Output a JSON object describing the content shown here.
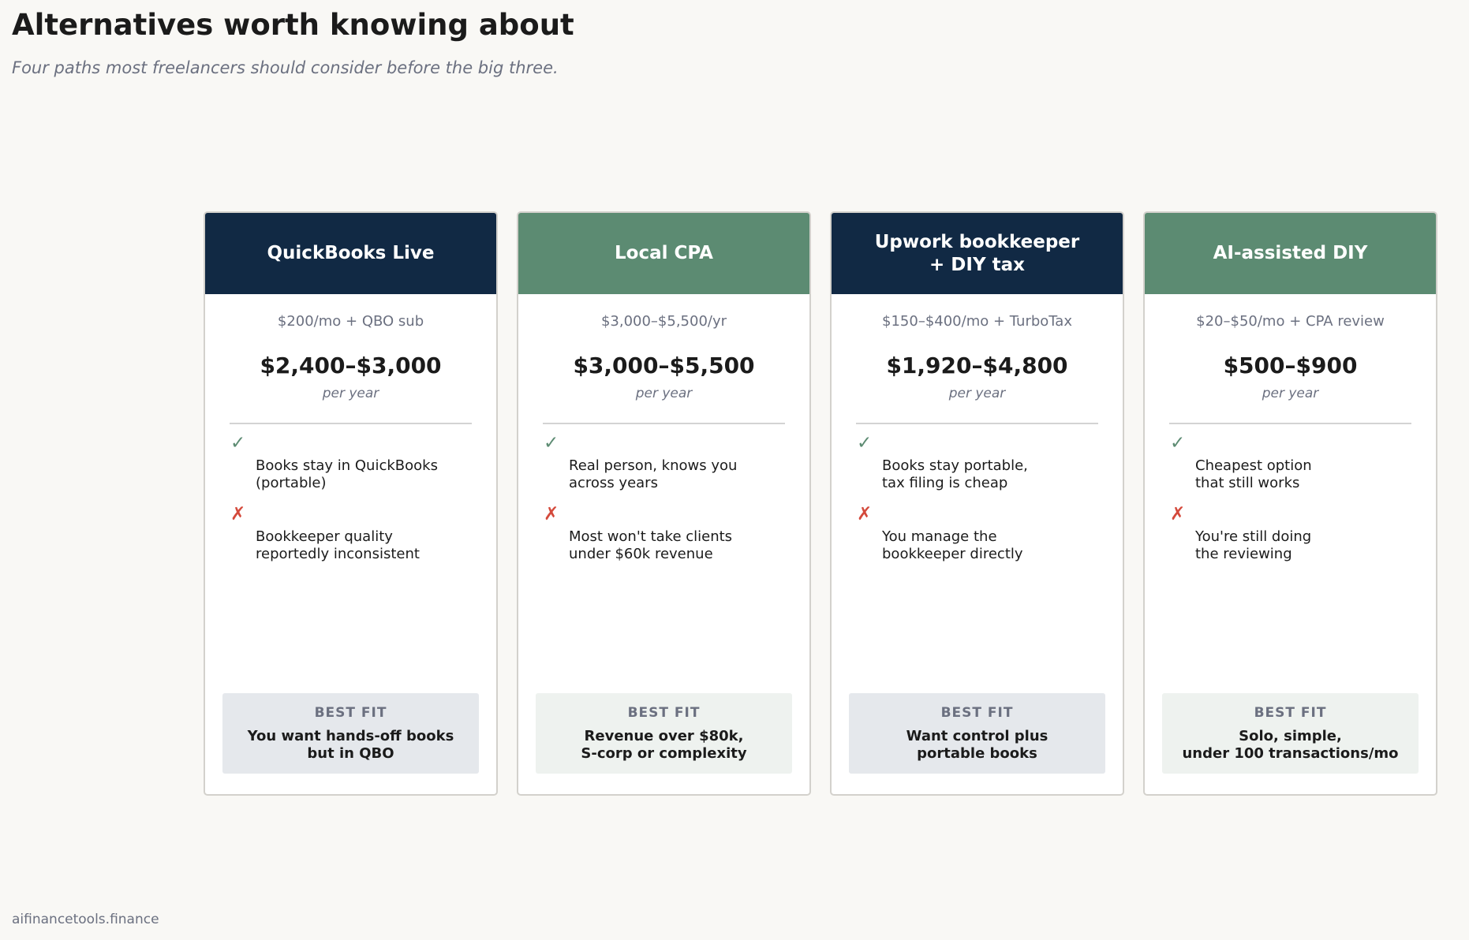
{
  "page": {
    "title": "Alternatives worth knowing about",
    "subtitle": "Four paths most freelancers should consider before the big three.",
    "footer": "aifinancetools.finance"
  },
  "colors": {
    "navy": "#112944",
    "green": "#5c8b72",
    "check": "#5c8b72",
    "cross": "#d44a3c"
  },
  "icons": {
    "pro": "check-icon",
    "con": "cross-icon",
    "pro_glyph": "✓",
    "con_glyph": "✗"
  },
  "cards": [
    {
      "name": "QuickBooks Live",
      "price_note": "$200/mo + QBO sub",
      "price_range": "$2,400–$3,000",
      "period": "per year",
      "pro": "Books stay in QuickBooks\n(portable)",
      "con": "Bookkeeper quality\nreportedly inconsistent",
      "best_fit_label": "BEST FIT",
      "best_fit": "You want hands-off books\nbut in QBO"
    },
    {
      "name": "Local CPA",
      "price_note": "$3,000–$5,500/yr",
      "price_range": "$3,000–$5,500",
      "period": "per year",
      "pro": "Real person, knows you\nacross years",
      "con": "Most won't take clients\nunder $60k revenue",
      "best_fit_label": "BEST FIT",
      "best_fit": "Revenue over $80k,\nS-corp or complexity"
    },
    {
      "name": "Upwork bookkeeper\n+ DIY tax",
      "price_note": "$150–$400/mo + TurboTax",
      "price_range": "$1,920–$4,800",
      "period": "per year",
      "pro": "Books stay portable,\ntax filing is cheap",
      "con": "You manage the\nbookkeeper directly",
      "best_fit_label": "BEST FIT",
      "best_fit": "Want control plus\nportable books"
    },
    {
      "name": "AI-assisted DIY",
      "price_note": "$20–$50/mo + CPA review",
      "price_range": "$500–$900",
      "period": "per year",
      "pro": "Cheapest option\nthat still works",
      "con": "You're still doing\nthe reviewing",
      "best_fit_label": "BEST FIT",
      "best_fit": "Solo, simple,\nunder 100 transactions/mo"
    }
  ]
}
